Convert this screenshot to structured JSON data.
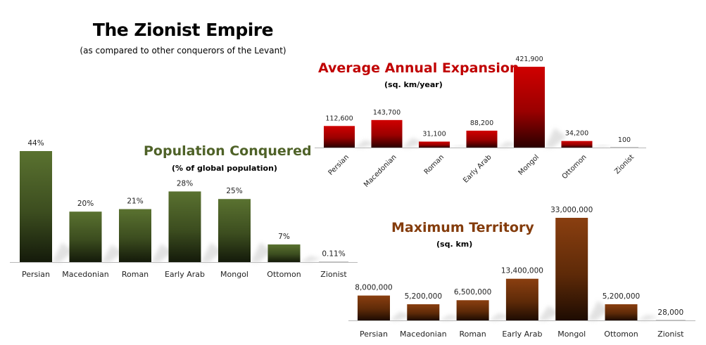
{
  "header": {
    "title": "The Zionist Empire",
    "subtitle": "(as compared to other conquerors of the Levant)"
  },
  "chart_data": [
    {
      "id": "population",
      "type": "bar",
      "title": "Population Conquered",
      "subtitle": "(% of global population)",
      "categories": [
        "Persian",
        "Macedonian",
        "Roman",
        "Early Arab",
        "Mongol",
        "Ottomon",
        "Zionist"
      ],
      "values": [
        44,
        20,
        21,
        28,
        25,
        7,
        0.11
      ],
      "value_labels": [
        "44%",
        "20%",
        "21%",
        "28%",
        "25%",
        "7%",
        "0.11%"
      ],
      "xlabel": "",
      "ylabel": "",
      "color": "#4f6228",
      "grid": false
    },
    {
      "id": "expansion",
      "type": "bar",
      "title": "Average Annual Expansion",
      "subtitle": "(sq. km/year)",
      "categories": [
        "Persian",
        "Macedonian",
        "Roman",
        "Early Arab",
        "Mongol",
        "Ottomon",
        "Zionist"
      ],
      "values": [
        112600,
        143700,
        31100,
        88200,
        421900,
        34200,
        100
      ],
      "value_labels": [
        "112,600",
        "143,700",
        "31,100",
        "88,200",
        "421,900",
        "34,200",
        "100"
      ],
      "xlabel": "",
      "ylabel": "",
      "color": "#c00000",
      "grid": false
    },
    {
      "id": "territory",
      "type": "bar",
      "title": "Maximum Territory",
      "subtitle": "(sq. km)",
      "categories": [
        "Persian",
        "Macedonian",
        "Roman",
        "Early Arab",
        "Mongol",
        "Ottomon",
        "Zionist"
      ],
      "values": [
        8000000,
        5200000,
        6500000,
        13400000,
        33000000,
        5200000,
        28000
      ],
      "value_labels": [
        "8,000,000",
        "5,200,000",
        "6,500,000",
        "13,400,000",
        "33,000,000",
        "5,200,000",
        "28,000"
      ],
      "xlabel": "",
      "ylabel": "",
      "color": "#843c0c",
      "grid": false
    }
  ]
}
